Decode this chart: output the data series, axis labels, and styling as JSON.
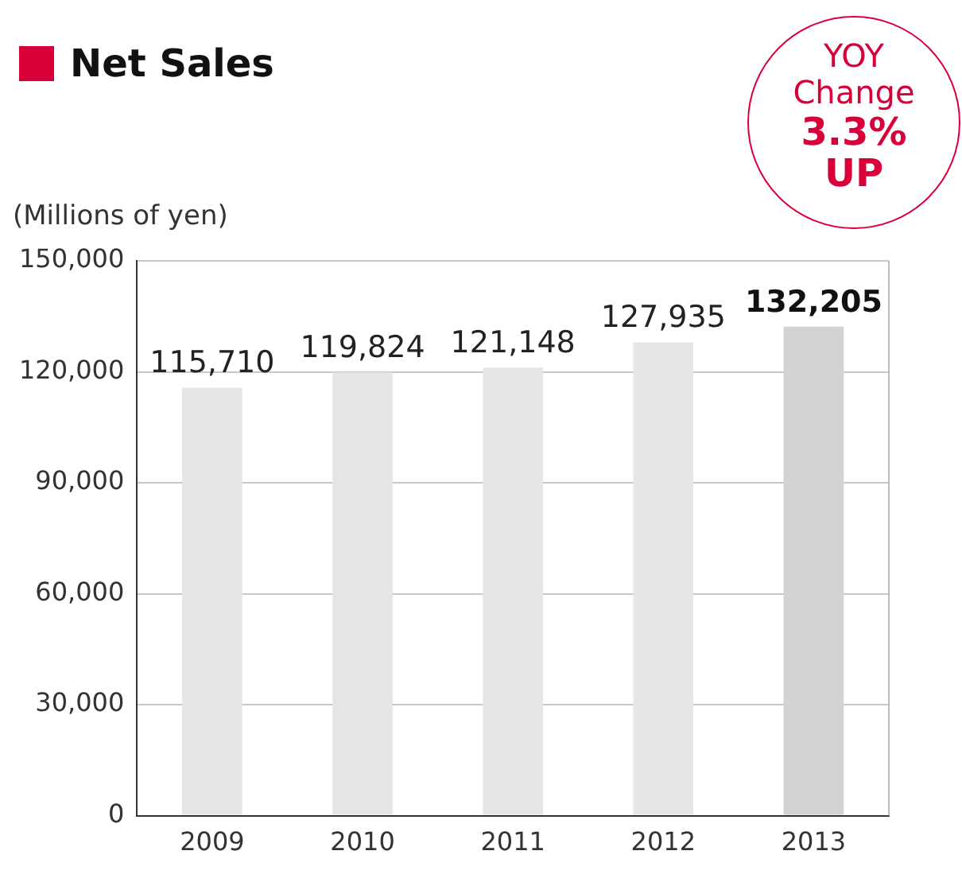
{
  "chart_data": {
    "type": "bar",
    "title": "Net Sales",
    "ylabel": "(Millions of yen)",
    "categories": [
      "2009",
      "2010",
      "2011",
      "2012",
      "2013"
    ],
    "values": [
      115710,
      119824,
      121148,
      127935,
      132205
    ],
    "colors": [
      "#e6e6e6",
      "#e6e6e6",
      "#e6e6e6",
      "#e6e6e6",
      "#d2d2d2"
    ],
    "value_labels": [
      "115,710",
      "119,824",
      "121,148",
      "127,935",
      "132,205"
    ],
    "ylim": [
      0,
      150000
    ],
    "yticks": [
      0,
      {
        "value": 30000,
        "label": "30,000"
      },
      {
        "value": 60000,
        "label": "60,000"
      },
      {
        "value": 90000,
        "label": "90,000"
      },
      {
        "value": 120000,
        "label": "120,000"
      },
      {
        "value": 150000,
        "label": "150,000"
      }
    ],
    "grid": "y",
    "legend": false,
    "annotations": [
      "YOY Change",
      "3.3%",
      "UP"
    ]
  }
}
